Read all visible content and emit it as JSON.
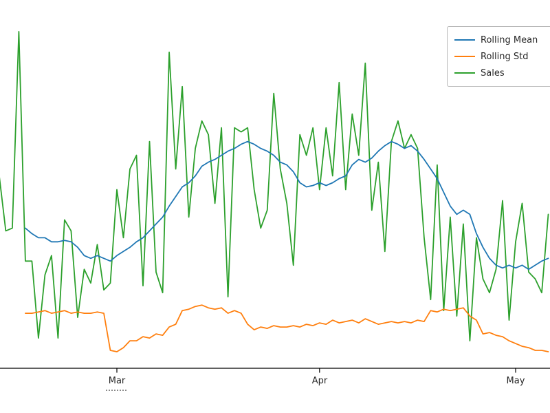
{
  "colors": {
    "rolling_mean": "#1f77b4",
    "rolling_std": "#ff7f0e",
    "sales": "#2ca02c",
    "axis": "#000000",
    "tick_text": "#262626"
  },
  "legend": {
    "entries": [
      {
        "label": "Rolling Mean",
        "color": "#1f77b4"
      },
      {
        "label": "Rolling Std",
        "color": "#ff7f0e"
      },
      {
        "label": "Sales",
        "color": "#2ca02c"
      }
    ]
  },
  "chart_data": {
    "type": "line",
    "title": "",
    "xlabel": "",
    "ylabel": "",
    "ylim": [
      0,
      268
    ],
    "grid": false,
    "legend_position": "upper right",
    "x_tick_labels": [
      "Mar",
      "Apr",
      "May"
    ],
    "x_tick_indices": [
      18,
      49,
      79
    ],
    "x": [
      "Feb 11",
      "Feb 12",
      "Feb 13",
      "Feb 14",
      "Feb 15",
      "Feb 16",
      "Feb 17",
      "Feb 18",
      "Feb 19",
      "Feb 20",
      "Feb 21",
      "Feb 22",
      "Feb 23",
      "Feb 24",
      "Feb 25",
      "Feb 26",
      "Feb 27",
      "Feb 28",
      "Mar 1",
      "Mar 2",
      "Mar 3",
      "Mar 4",
      "Mar 5",
      "Mar 6",
      "Mar 7",
      "Mar 8",
      "Mar 9",
      "Mar 10",
      "Mar 11",
      "Mar 12",
      "Mar 13",
      "Mar 14",
      "Mar 15",
      "Mar 16",
      "Mar 17",
      "Mar 18",
      "Mar 19",
      "Mar 20",
      "Mar 21",
      "Mar 22",
      "Mar 23",
      "Mar 24",
      "Mar 25",
      "Mar 26",
      "Mar 27",
      "Mar 28",
      "Mar 29",
      "Mar 30",
      "Mar 31",
      "Apr 1",
      "Apr 2",
      "Apr 3",
      "Apr 4",
      "Apr 5",
      "Apr 6",
      "Apr 7",
      "Apr 8",
      "Apr 9",
      "Apr 10",
      "Apr 11",
      "Apr 12",
      "Apr 13",
      "Apr 14",
      "Apr 15",
      "Apr 16",
      "Apr 17",
      "Apr 18",
      "Apr 19",
      "Apr 20",
      "Apr 21",
      "Apr 22",
      "Apr 23",
      "Apr 24",
      "Apr 25",
      "Apr 26",
      "Apr 27",
      "Apr 28",
      "Apr 29",
      "Apr 30",
      "May 1",
      "May 2",
      "May 3",
      "May 4",
      "May 5",
      "May 6"
    ],
    "series": [
      {
        "name": "Sales",
        "color": "#2ca02c",
        "values": [
          140,
          100,
          102,
          245,
          78,
          78,
          22,
          68,
          82,
          22,
          108,
          100,
          37,
          72,
          62,
          90,
          57,
          62,
          130,
          95,
          145,
          155,
          60,
          165,
          70,
          55,
          230,
          145,
          205,
          110,
          160,
          180,
          170,
          120,
          175,
          52,
          175,
          172,
          175,
          130,
          102,
          115,
          200,
          145,
          120,
          75,
          170,
          155,
          175,
          130,
          175,
          140,
          208,
          130,
          185,
          155,
          222,
          115,
          150,
          85,
          165,
          180,
          160,
          170,
          160,
          95,
          50,
          148,
          42,
          110,
          38,
          105,
          20,
          95,
          65,
          55,
          72,
          122,
          35,
          92,
          120,
          70,
          65,
          55,
          112
        ]
      },
      {
        "name": "Rolling Mean",
        "color": "#1f77b4",
        "values": [
          null,
          null,
          null,
          null,
          102,
          98,
          95,
          95,
          92,
          92,
          93,
          92,
          88,
          82,
          80,
          82,
          80,
          78,
          82,
          85,
          88,
          92,
          95,
          100,
          105,
          110,
          118,
          125,
          132,
          135,
          140,
          147,
          150,
          152,
          155,
          158,
          160,
          163,
          165,
          163,
          160,
          158,
          155,
          150,
          148,
          143,
          135,
          132,
          133,
          135,
          133,
          135,
          138,
          140,
          148,
          152,
          150,
          153,
          158,
          162,
          165,
          163,
          160,
          162,
          158,
          152,
          145,
          138,
          128,
          118,
          112,
          115,
          112,
          98,
          88,
          80,
          75,
          73,
          75,
          73,
          75,
          72,
          75,
          78,
          80
        ]
      },
      {
        "name": "Rolling Std",
        "color": "#ff7f0e",
        "values": [
          null,
          null,
          null,
          null,
          40,
          40,
          41,
          42,
          40,
          41,
          42,
          40,
          41,
          40,
          40,
          41,
          40,
          13,
          12,
          15,
          20,
          20,
          23,
          22,
          25,
          24,
          30,
          32,
          42,
          43,
          45,
          46,
          44,
          43,
          44,
          40,
          42,
          40,
          32,
          28,
          30,
          29,
          31,
          30,
          30,
          31,
          30,
          32,
          31,
          33,
          32,
          35,
          33,
          34,
          35,
          33,
          36,
          34,
          32,
          33,
          34,
          33,
          34,
          33,
          35,
          34,
          42,
          41,
          43,
          42,
          43,
          44,
          38,
          35,
          25,
          26,
          24,
          23,
          20,
          18,
          16,
          15,
          13,
          13,
          12
        ]
      }
    ]
  }
}
